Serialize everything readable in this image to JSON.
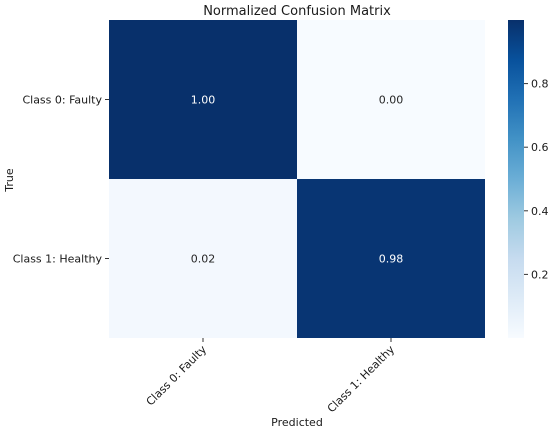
{
  "chart_data": {
    "type": "heatmap",
    "title": "Normalized Confusion Matrix",
    "xlabel": "Predicted",
    "ylabel": "True",
    "x_categories": [
      "Class 0: Faulty",
      "Class 1: Healthy"
    ],
    "y_categories": [
      "Class 0: Faulty",
      "Class 1: Healthy"
    ],
    "values": [
      [
        1.0,
        0.0
      ],
      [
        0.02,
        0.98
      ]
    ],
    "cell_labels": [
      [
        "1.00",
        "0.00"
      ],
      [
        "0.02",
        "0.98"
      ]
    ],
    "colorbar": {
      "range": [
        0.0,
        1.0
      ],
      "ticks": [
        0.2,
        0.4,
        0.6,
        0.8
      ],
      "tick_labels": [
        "0.2",
        "0.4",
        "0.6",
        "0.8"
      ]
    },
    "colormap": "Blues",
    "colors": {
      "low": "#f7fbff",
      "high": "#08306b"
    }
  }
}
